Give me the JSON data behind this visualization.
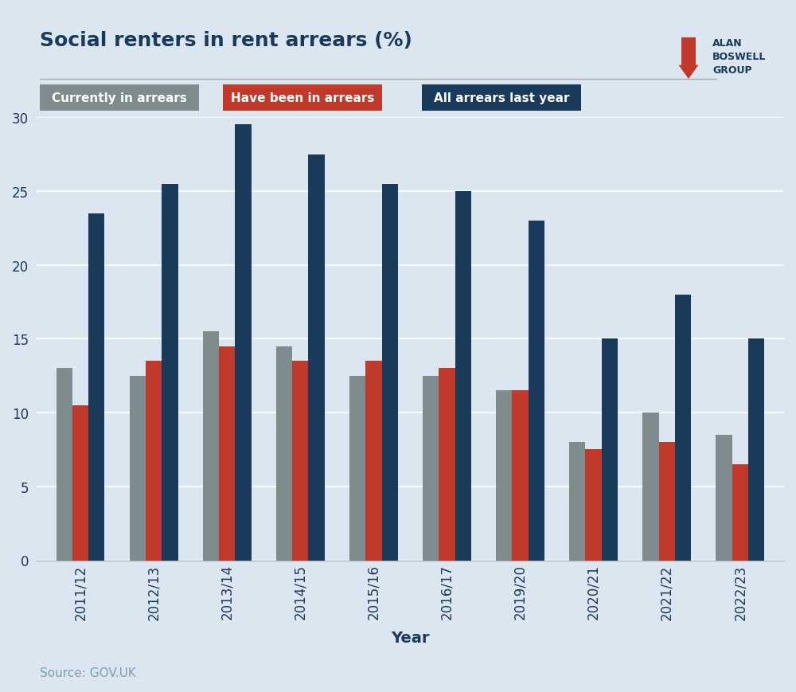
{
  "title": "Social renters in rent arrears (%)",
  "xlabel": "Year",
  "source": "Source: GOV.UK",
  "background_color": "#dce6f0",
  "years": [
    "2011/12",
    "2012/13",
    "2013/14",
    "2014/15",
    "2015/16",
    "2016/17",
    "2019/20",
    "2020/21",
    "2021/22",
    "2022/23"
  ],
  "currently_in_arrears": [
    13.0,
    12.5,
    15.5,
    14.5,
    12.5,
    12.5,
    11.5,
    8.0,
    10.0,
    8.5
  ],
  "have_been_in_arrears": [
    10.5,
    13.5,
    14.5,
    13.5,
    13.5,
    13.0,
    11.5,
    7.5,
    8.0,
    6.5
  ],
  "all_arrears_last_year": [
    23.5,
    25.5,
    29.5,
    27.5,
    25.5,
    25.0,
    23.0,
    15.0,
    18.0,
    15.0
  ],
  "color_currently": "#7f8c8d",
  "color_have_been": "#c0392b",
  "color_all_arrears": "#1a3a5c",
  "ylim": [
    0,
    30
  ],
  "yticks": [
    0,
    5,
    10,
    15,
    20,
    25,
    30
  ],
  "legend_labels": [
    "Currently in arrears",
    "Have been in arrears",
    "All arrears last year"
  ],
  "title_fontsize": 18,
  "axis_label_fontsize": 14,
  "tick_fontsize": 12,
  "source_fontsize": 11
}
